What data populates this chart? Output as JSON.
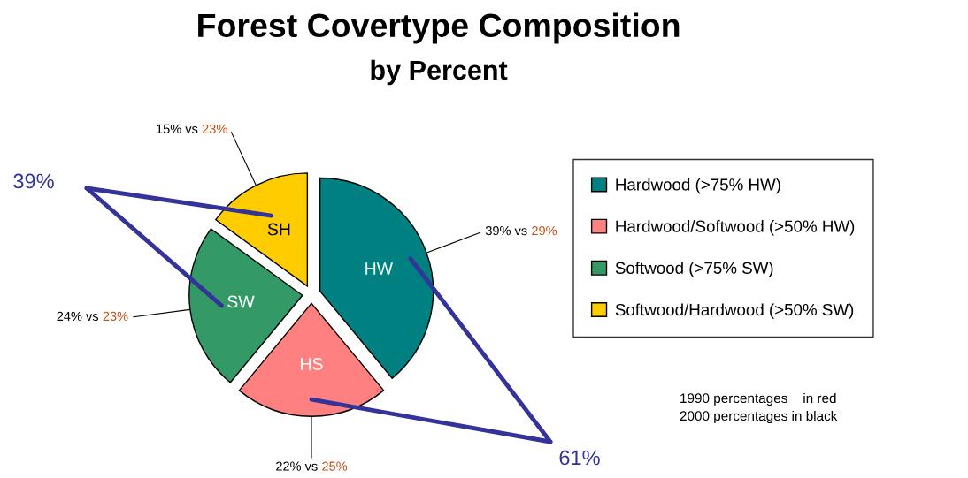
{
  "chart_data": {
    "type": "pie",
    "title": "Forest Covertype Composition",
    "subtitle": "by Percent",
    "categories": [
      "Hardwood (>75% HW)",
      "Hardwood/Softwood (>50% HW)",
      "Softwood (>75% SW)",
      "Softwood/Hardwood (>50% SW)"
    ],
    "values": [
      39,
      22,
      24,
      15
    ],
    "colors": [
      "#008080",
      "#ff8080",
      "#339966",
      "#ffcc00"
    ],
    "value_labels": [
      "39% vs 29%",
      "22% vs 25%",
      "24% vs 23%",
      "15% vs 23%"
    ],
    "annotations": [
      "HW",
      "HS",
      "SW",
      "SH",
      "61%",
      "39%",
      "1990 percentages    in red",
      "2000 percentages in black"
    ],
    "legend": "right"
  }
}
